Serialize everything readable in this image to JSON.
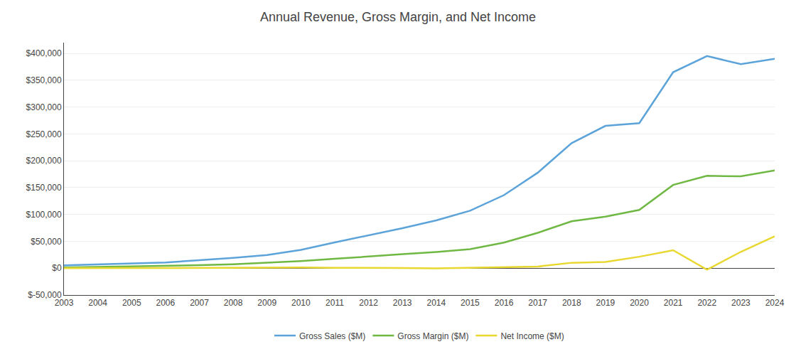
{
  "chart_data": {
    "type": "line",
    "title": "Annual Revenue, Gross Margin, and Net Income",
    "x": [
      2003,
      2004,
      2005,
      2006,
      2007,
      2008,
      2009,
      2010,
      2011,
      2012,
      2013,
      2014,
      2015,
      2016,
      2017,
      2018,
      2019,
      2020,
      2021,
      2022,
      2023,
      2024
    ],
    "series": [
      {
        "name": "Gross Sales ($M)",
        "color": "#5ba3d9",
        "values": [
          5264,
          6921,
          8490,
          10711,
          14835,
          19166,
          24509,
          34204,
          48077,
          61093,
          74452,
          88988,
          107006,
          135987,
          177866,
          232887,
          265000,
          270000,
          365000,
          395000,
          380000,
          390000
        ]
      },
      {
        "name": "Gross Margin ($M)",
        "color": "#70b844",
        "values": [
          1400,
          2200,
          3200,
          4200,
          5600,
          7400,
          9900,
          13200,
          17400,
          21300,
          26000,
          30100,
          35400,
          47700,
          65900,
          87400,
          96000,
          108500,
          155000,
          172000,
          171000,
          182000
        ]
      },
      {
        "name": "Net Income ($M)",
        "color": "#e8d830",
        "values": [
          35,
          588,
          359,
          190,
          476,
          645,
          902,
          1152,
          631,
          -39,
          274,
          -241,
          596,
          2371,
          3033,
          10073,
          11588,
          21331,
          33364,
          -2722,
          30425,
          59248
        ]
      }
    ],
    "xlim": [
      2003,
      2024
    ],
    "xticks": [
      2003,
      2004,
      2005,
      2006,
      2007,
      2008,
      2009,
      2010,
      2011,
      2012,
      2013,
      2014,
      2015,
      2016,
      2017,
      2018,
      2019,
      2020,
      2021,
      2022,
      2023,
      2024
    ],
    "ylim": [
      -50000,
      420000
    ],
    "yticks": [
      {
        "value": -50000,
        "label": "$-50,000"
      },
      {
        "value": 0,
        "label": "$0"
      },
      {
        "value": 50000,
        "label": "$50,000"
      },
      {
        "value": 100000,
        "label": "$100,000"
      },
      {
        "value": 150000,
        "label": "$150,000"
      },
      {
        "value": 200000,
        "label": "$200,000"
      },
      {
        "value": 250000,
        "label": "$250,000"
      },
      {
        "value": 300000,
        "label": "$300,000"
      },
      {
        "value": 350000,
        "label": "$350,000"
      },
      {
        "value": 400000,
        "label": "$400,000"
      }
    ],
    "grid": true,
    "legend": "bottom"
  }
}
